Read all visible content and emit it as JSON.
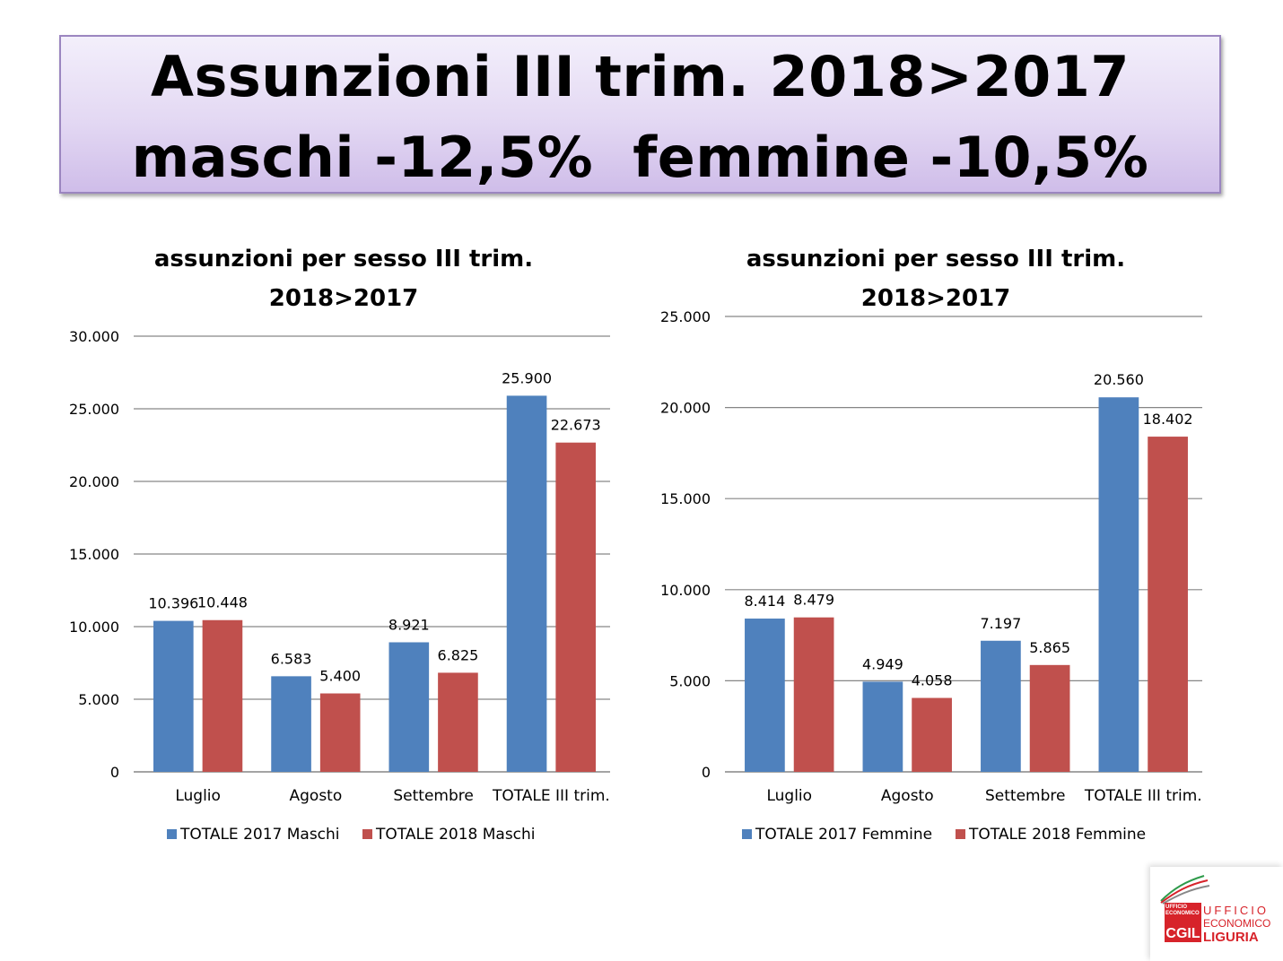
{
  "header": {
    "line1": "Assunzioni III trim. 2018>2017",
    "line2": "maschi -12,5%  femmine -10,5%"
  },
  "colors": {
    "series2017": "#4f81bd",
    "series2018": "#c0504d",
    "grid": "#868686"
  },
  "chart_data": [
    {
      "type": "bar",
      "title": [
        "assunzioni per sesso III trim.",
        "2018>2017"
      ],
      "categories": [
        "Luglio",
        "Agosto",
        "Settembre",
        "TOTALE  III trim."
      ],
      "series": [
        {
          "name": "TOTALE 2017 Maschi",
          "values": [
            10396,
            6583,
            8921,
            25900
          ],
          "labels": [
            "10.396",
            "6.583",
            "8.921",
            "25.900"
          ]
        },
        {
          "name": "TOTALE 2018 Maschi",
          "values": [
            10448,
            5400,
            6825,
            22673
          ],
          "labels": [
            "10.448",
            "5.400",
            "6.825",
            "22.673"
          ]
        }
      ],
      "yticks": [
        "0",
        "5.000",
        "10.000",
        "15.000",
        "20.000",
        "25.000",
        "30.000"
      ],
      "ylim": [
        0,
        30000
      ],
      "grid": true,
      "legend": "bottom"
    },
    {
      "type": "bar",
      "title": [
        "assunzioni per sesso III trim.",
        "2018>2017"
      ],
      "categories": [
        "Luglio",
        "Agosto",
        "Settembre",
        "TOTALE  III trim."
      ],
      "series": [
        {
          "name": "TOTALE 2017 Femmine",
          "values": [
            8414,
            4949,
            7197,
            20560
          ],
          "labels": [
            "8.414",
            "4.949",
            "7.197",
            "20.560"
          ]
        },
        {
          "name": "TOTALE 2018 Femmine",
          "values": [
            8479,
            4058,
            5865,
            18402
          ],
          "labels": [
            "8.479",
            "4.058",
            "5.865",
            "18.402"
          ]
        }
      ],
      "yticks": [
        "0",
        "5.000",
        "10.000",
        "15.000",
        "20.000",
        "25.000"
      ],
      "ylim": [
        0,
        25000
      ],
      "grid": true,
      "legend": "bottom"
    }
  ],
  "logo": {
    "small_text": "UFFICIO ECONOMICO",
    "mark": "CGIL",
    "line1": "UFFICIO",
    "line2": "ECONOMICO",
    "line3": "LIGURIA"
  }
}
